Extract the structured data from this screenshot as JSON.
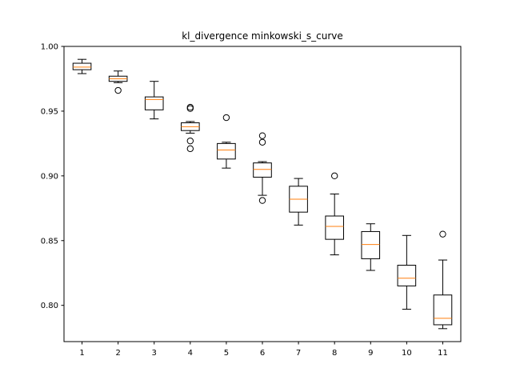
{
  "chart_data": {
    "type": "boxplot",
    "title": "kl_divergence minkowski_s_curve",
    "xlabel": "",
    "ylabel": "",
    "ylim": [
      0.772,
      1.0
    ],
    "yticks": [
      0.8,
      0.85,
      0.9,
      0.95,
      1.0
    ],
    "ytick_labels": [
      "0.80",
      "0.85",
      "0.90",
      "0.95",
      "1.00"
    ],
    "categories": [
      "1",
      "2",
      "3",
      "4",
      "5",
      "6",
      "7",
      "8",
      "9",
      "10",
      "11"
    ],
    "boxes": [
      {
        "whislo": 0.979,
        "q1": 0.982,
        "med": 0.984,
        "q3": 0.987,
        "whishi": 0.99,
        "fliers": []
      },
      {
        "whislo": 0.972,
        "q1": 0.973,
        "med": 0.975,
        "q3": 0.977,
        "whishi": 0.981,
        "fliers": [
          0.966
        ]
      },
      {
        "whislo": 0.944,
        "q1": 0.951,
        "med": 0.959,
        "q3": 0.961,
        "whishi": 0.973,
        "fliers": []
      },
      {
        "whislo": 0.933,
        "q1": 0.935,
        "med": 0.938,
        "q3": 0.941,
        "whishi": 0.942,
        "fliers": [
          0.952,
          0.953,
          0.927,
          0.921
        ]
      },
      {
        "whislo": 0.906,
        "q1": 0.913,
        "med": 0.92,
        "q3": 0.925,
        "whishi": 0.926,
        "fliers": [
          0.945
        ]
      },
      {
        "whislo": 0.885,
        "q1": 0.899,
        "med": 0.905,
        "q3": 0.91,
        "whishi": 0.911,
        "fliers": [
          0.931,
          0.926,
          0.881
        ]
      },
      {
        "whislo": 0.862,
        "q1": 0.872,
        "med": 0.882,
        "q3": 0.892,
        "whishi": 0.898,
        "fliers": []
      },
      {
        "whislo": 0.839,
        "q1": 0.851,
        "med": 0.861,
        "q3": 0.869,
        "whishi": 0.886,
        "fliers": [
          0.9
        ]
      },
      {
        "whislo": 0.827,
        "q1": 0.836,
        "med": 0.847,
        "q3": 0.857,
        "whishi": 0.863,
        "fliers": []
      },
      {
        "whislo": 0.797,
        "q1": 0.815,
        "med": 0.821,
        "q3": 0.831,
        "whishi": 0.854,
        "fliers": []
      },
      {
        "whislo": 0.782,
        "q1": 0.785,
        "med": 0.79,
        "q3": 0.808,
        "whishi": 0.835,
        "fliers": [
          0.855
        ]
      }
    ],
    "colors": {
      "box": "#000000",
      "median": "#ff7f0e",
      "flier": "#000000"
    },
    "grid": false,
    "legend": "none"
  }
}
